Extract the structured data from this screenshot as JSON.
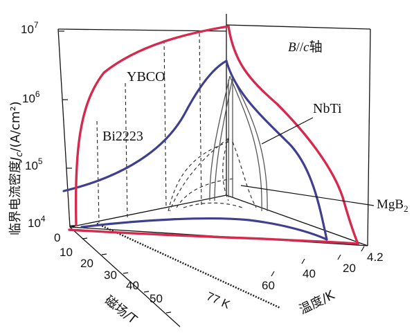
{
  "chart_data": {
    "type": "3d-surface",
    "orientation_label": "B//c轴",
    "axes": {
      "y": {
        "label": "临界电流密度Jc/(A/cm²)",
        "scale": "log",
        "range": [
          10000,
          10000000
        ],
        "ticks": [
          {
            "main": "10",
            "exp": "4"
          },
          {
            "main": "10",
            "exp": "5"
          },
          {
            "main": "10",
            "exp": "6"
          },
          {
            "main": "10",
            "exp": "7"
          }
        ]
      },
      "field": {
        "label": "磁场/T",
        "ticks": [
          "0",
          "10",
          "20",
          "30",
          "40",
          "50"
        ]
      },
      "temperature": {
        "label": "温度/K",
        "ticks": [
          "4.2",
          "20",
          "40",
          "60"
        ],
        "reference_label": "77 K"
      }
    },
    "series": [
      {
        "name": "YBCO",
        "color": "#d42a4e"
      },
      {
        "name": "Bi2223",
        "color": "#3f3f8f"
      },
      {
        "name": "NbTi",
        "color": "#555555"
      },
      {
        "name": "MgB",
        "sub": "2",
        "color": "#555555"
      }
    ]
  }
}
